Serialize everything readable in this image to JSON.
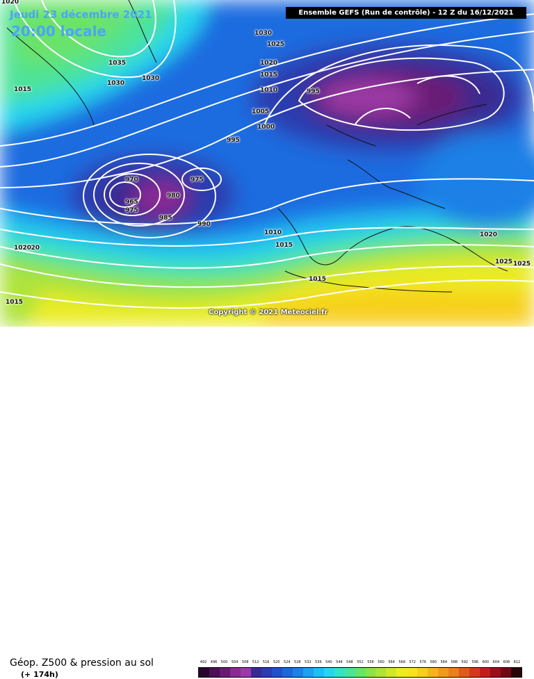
{
  "date_text": "Jeudi 23 décembre 2021",
  "time_text": "20:00 locale",
  "model_title": "Ensemble GEFS  (Run de contrôle)  -  12 Z du 16/12/2021",
  "copyright": "Copyright © 2021 Meteociel.fr",
  "caption": "Géop. Z500 & pression au sol",
  "caption_sub": "(+ 174h)",
  "isobar_labels": [
    "1020",
    "1030",
    "1025",
    "1035",
    "1030",
    "1030",
    "1015",
    "1020",
    "1015",
    "1010",
    "995",
    "1005",
    "1000",
    "995",
    "970",
    "975",
    "980",
    "965",
    "975",
    "985",
    "990",
    "1010",
    "1015",
    "1020",
    "1020",
    "1015",
    "1015",
    "1020",
    "1025",
    "1025"
  ],
  "scale": {
    "ticks": [
      "492",
      "496",
      "500",
      "504",
      "508",
      "512",
      "516",
      "520",
      "524",
      "528",
      "532",
      "536",
      "540",
      "544",
      "548",
      "552",
      "556",
      "560",
      "564",
      "568",
      "572",
      "576",
      "580",
      "584",
      "588",
      "592",
      "596",
      "600",
      "604",
      "608",
      "612"
    ],
    "colors": [
      "#2a0530",
      "#4b0f55",
      "#6a1a75",
      "#8a2a95",
      "#9b3aa5",
      "#3a2a90",
      "#2b3cb0",
      "#2050c8",
      "#1f66d8",
      "#1f80e6",
      "#1fa0f0",
      "#20bff2",
      "#27d6ee",
      "#34e2c8",
      "#4ce39a",
      "#6ae36a",
      "#8ce24a",
      "#aee33a",
      "#cfe82c",
      "#ecec20",
      "#f7e41e",
      "#f7cf1e",
      "#f3b41e",
      "#ee9a1e",
      "#e8801e",
      "#df5a1e",
      "#d23a1e",
      "#c01e1e",
      "#9a0f18",
      "#700a12",
      "#2a0508"
    ]
  }
}
